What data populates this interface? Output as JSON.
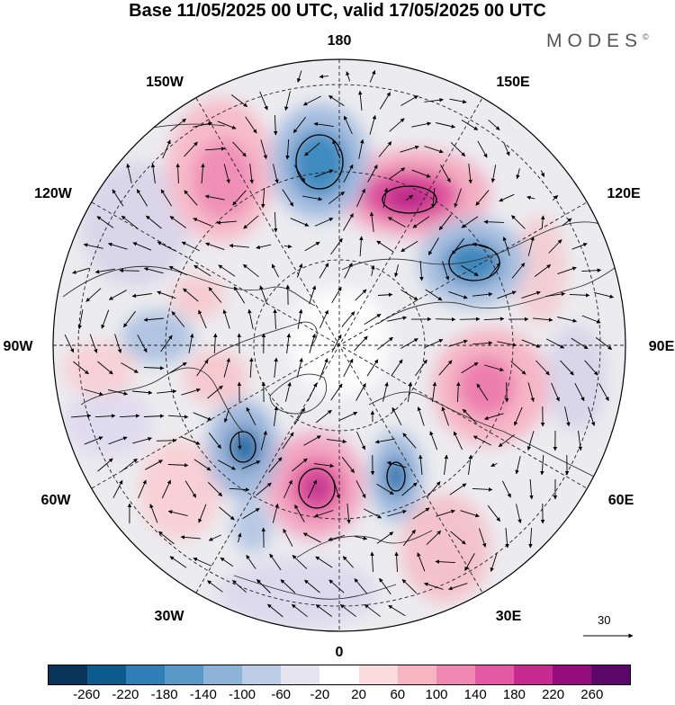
{
  "header": {
    "title": "Base 11/05/2025 00 UTC, valid 17/05/2025 00 UTC",
    "logo": "MODES",
    "logo_mark": "©"
  },
  "map": {
    "projection": "north-polar-stereographic",
    "longitude_labels": [
      "180",
      "150E",
      "120E",
      "90E",
      "60E",
      "30E",
      "0",
      "30W",
      "60W",
      "90W",
      "120W",
      "150W"
    ],
    "reference_vector": {
      "label": "30"
    }
  },
  "colorbar": {
    "colors": [
      "#08345a",
      "#0d5b8c",
      "#2f7fb6",
      "#5999c7",
      "#8eb3d8",
      "#bccce6",
      "#e6e4f1",
      "#ffffff",
      "#fadbdd",
      "#f7b5c2",
      "#f088b1",
      "#e35aa2",
      "#c72a8e",
      "#950d7c",
      "#5b0669"
    ],
    "tick_labels": [
      "-260",
      "-220",
      "-180",
      "-140",
      "-100",
      "-60",
      "-20",
      "20",
      "60",
      "100",
      "140",
      "180",
      "220",
      "260"
    ]
  }
}
